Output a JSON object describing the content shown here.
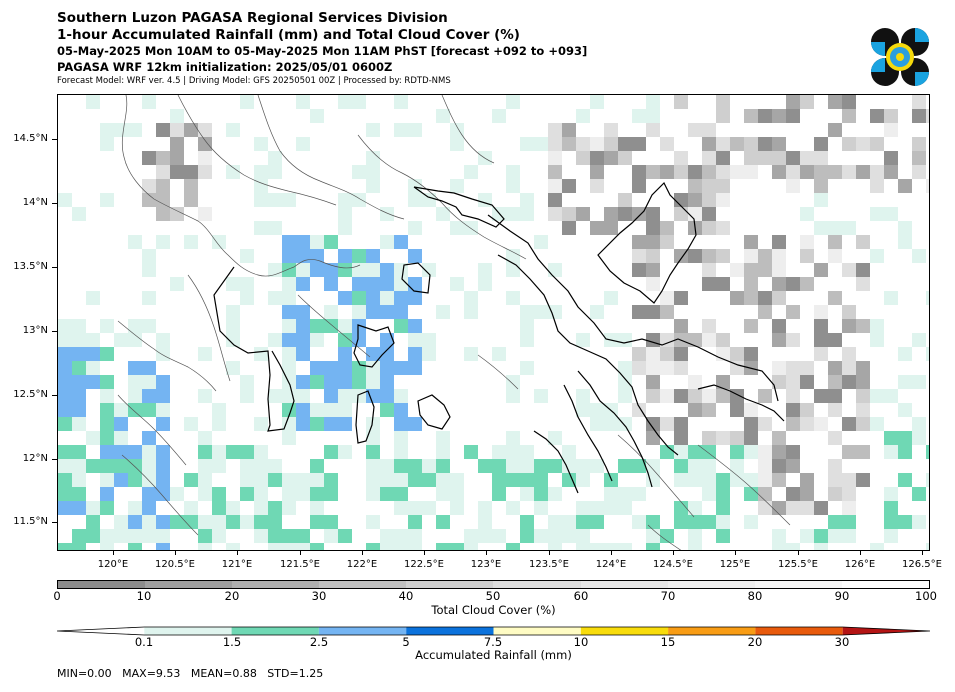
{
  "header": {
    "title": "Southern Luzon PAGASA Regional Services Division",
    "subtitle": "1-hour Accumulated Rainfall (mm) and Total Cloud Cover (%)",
    "valid_time": "05-May-2025 Mon 10AM to 05-May-2025 Mon 11AM PhST [forecast +092 to +093]",
    "init_time": "PAGASA WRF 12km initialization: 2025/05/01 0600Z",
    "model_info": "Forecast Model: WRF ver. 4.5 | Driving Model: GFS 20250501 00Z | Processed by: RDTD-NMS"
  },
  "logo": {
    "icon": "pagasa-logo-icon"
  },
  "map": {
    "lat_labels": [
      "14.5°N",
      "14°N",
      "13.5°N",
      "13°N",
      "12.5°N",
      "12°N",
      "11.5°N"
    ],
    "lon_labels": [
      "120°E",
      "120.5°E",
      "121°E",
      "121.5°E",
      "122°E",
      "122.5°E",
      "123°E",
      "123.5°E",
      "124°E",
      "124.5°E",
      "125°E",
      "125.5°E",
      "126°E",
      "126.5°E"
    ]
  },
  "cloud_colorbar": {
    "title": "Total Cloud Cover (%)",
    "ticks": [
      "0",
      "10",
      "20",
      "30",
      "40",
      "50",
      "60",
      "70",
      "80",
      "90",
      "100"
    ],
    "colors": [
      "#8c8c8c",
      "#9f9f9f",
      "#b0b0b0",
      "#c0c0c0",
      "#cfcfcf",
      "#dcdcdc",
      "#e6e6e6",
      "#eeeeee",
      "#f5f5f5",
      "#fcfcfc"
    ]
  },
  "rain_colorbar": {
    "title": "Accumulated Rainfall (mm)",
    "ticks": [
      "0.1",
      "1.5",
      "2.5",
      "5",
      "7.5",
      "10",
      "15",
      "20",
      "30"
    ],
    "colors": [
      "#ffffff",
      "#dff4ee",
      "#6fd8b4",
      "#74b4f2",
      "#0b72dc",
      "#fffcc4",
      "#f8dc0c",
      "#f89c14",
      "#e85a0c",
      "#b41414"
    ]
  },
  "stats": {
    "text": "MIN=0.00   MAX=9.53   MEAN=0.88   STD=1.25"
  }
}
